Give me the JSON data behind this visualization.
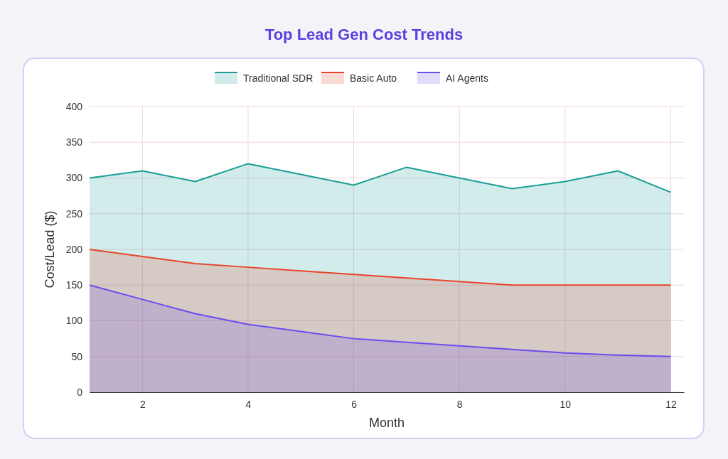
{
  "chart_data": {
    "type": "area",
    "title": "Top Lead Gen Cost Trends",
    "xlabel": "Month",
    "ylabel": "Cost/Lead ($)",
    "x": [
      1,
      2,
      3,
      4,
      5,
      6,
      7,
      8,
      9,
      10,
      11,
      12
    ],
    "series": [
      {
        "name": "Traditional SDR",
        "color": "#1a9e96",
        "values": [
          300,
          310,
          295,
          320,
          305,
          290,
          315,
          300,
          285,
          295,
          310,
          280
        ]
      },
      {
        "name": "Basic Auto",
        "color": "#e8442b",
        "values": [
          200,
          190,
          180,
          175,
          170,
          165,
          160,
          155,
          150,
          150,
          150,
          150
        ]
      },
      {
        "name": "AI Agents",
        "color": "#6a4cf0",
        "values": [
          150,
          130,
          110,
          95,
          85,
          75,
          70,
          65,
          60,
          55,
          52,
          50
        ]
      }
    ],
    "xlim": [
      1,
      12.25
    ],
    "xticks": [
      2,
      4,
      6,
      8,
      10,
      12
    ],
    "ylim": [
      0,
      400
    ],
    "yticks": [
      0,
      50,
      100,
      150,
      200,
      250,
      300,
      350,
      400
    ],
    "grid": true,
    "legend": "top"
  }
}
